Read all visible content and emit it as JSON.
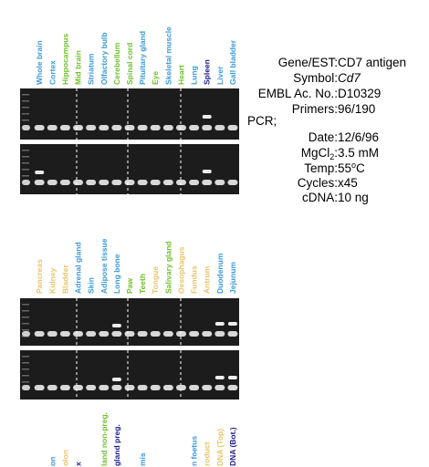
{
  "top_lanes": [
    {
      "text": "Whole brain",
      "color": "#3a9ad9"
    },
    {
      "text": "Cortex",
      "color": "#3a9ad9"
    },
    {
      "text": "Hippocampus",
      "color": "#6fbf2a"
    },
    {
      "text": "Mid brain",
      "color": "#6fbf2a"
    },
    {
      "text": "Striatum",
      "color": "#3a9ad9"
    },
    {
      "text": "Olfactory bulb",
      "color": "#3a9ad9"
    },
    {
      "text": "Cerebellum",
      "color": "#6fbf2a"
    },
    {
      "text": "Spinal cord",
      "color": "#6fbf2a"
    },
    {
      "text": "Pituitary gland",
      "color": "#3a9ad9"
    },
    {
      "text": "Eye",
      "color": "#6fbf2a"
    },
    {
      "text": "Skeletal muscle",
      "color": "#3a9ad9"
    },
    {
      "text": "Heart",
      "color": "#6fbf2a"
    },
    {
      "text": "Lung",
      "color": "#3a9ad9"
    },
    {
      "text": "Spleen",
      "color": "#1a1a8c"
    },
    {
      "text": "Liver",
      "color": "#3a9ad9"
    },
    {
      "text": "Gall bladder",
      "color": "#3a9ad9"
    }
  ],
  "middle_lanes": [
    {
      "text": "Pancreas",
      "color": "#e9c46a"
    },
    {
      "text": "Kidney",
      "color": "#e9c46a"
    },
    {
      "text": "Bladder",
      "color": "#e9c46a"
    },
    {
      "text": "Adrenal gland",
      "color": "#3a9ad9"
    },
    {
      "text": "Skin",
      "color": "#3a9ad9"
    },
    {
      "text": "Adipose tissue",
      "color": "#3a9ad9"
    },
    {
      "text": "Long bone",
      "color": "#3a9ad9"
    },
    {
      "text": "Paw",
      "color": "#6fbf2a"
    },
    {
      "text": "Teeth",
      "color": "#6fbf2a"
    },
    {
      "text": "Tongue",
      "color": "#e9c46a"
    },
    {
      "text": "Salivary gland",
      "color": "#6fbf2a"
    },
    {
      "text": "Oesophagus",
      "color": "#e9c46a"
    },
    {
      "text": "Fundus",
      "color": "#e9c46a"
    },
    {
      "text": "Antrum",
      "color": "#e9c46a"
    },
    {
      "text": "Duodenum",
      "color": "#3a9ad9"
    },
    {
      "text": "Jejunum",
      "color": "#3a9ad9"
    }
  ],
  "bottom_lanes": [
    {
      "text": "on",
      "color": "#3a9ad9",
      "lane": 2
    },
    {
      "text": "olon",
      "color": "#e9c46a",
      "lane": 3
    },
    {
      "text": "x",
      "color": "#1a1a8c",
      "lane": 4
    },
    {
      "text": "land non-preg.",
      "color": "#6fbf2a",
      "lane": 6
    },
    {
      "text": "gland preg.",
      "color": "#1a1a8c",
      "lane": 7
    },
    {
      "text": "mis",
      "color": "#3a9ad9",
      "lane": 9
    },
    {
      "text": "n foetus",
      "color": "#3a9ad9",
      "lane": 13
    },
    {
      "text": "roduct",
      "color": "#e9c46a",
      "lane": 14
    },
    {
      "text": "DNA (Top)",
      "color": "#e9c46a",
      "lane": 15
    },
    {
      "text": "DNA (Bot.)",
      "color": "#1a1a8c",
      "lane": 16
    }
  ],
  "info": {
    "gene_label": "Gene/EST:",
    "gene": "CD7 antigen",
    "symbol_label": "Symbol:",
    "symbol": "Cd7",
    "embl_label": "EMBL Ac. No.:",
    "embl": "D10329",
    "primers_label": "Primers:",
    "primers": "96/190",
    "pcr": "PCR;",
    "date_label": "Date:",
    "date": "12/6/96",
    "mgcl_label": "MgCl",
    "mgcl_sub": "2",
    "mgcl_colon": ":",
    "mgcl": "3.5 mM",
    "temp_label": "Temp:",
    "temp": "55",
    "temp_sup": "o",
    "temp_unit": "C",
    "cycles_label": "Cycles:",
    "cycles": "x45",
    "cdna_label": "cDNA:",
    "cdna": "10 ng"
  }
}
